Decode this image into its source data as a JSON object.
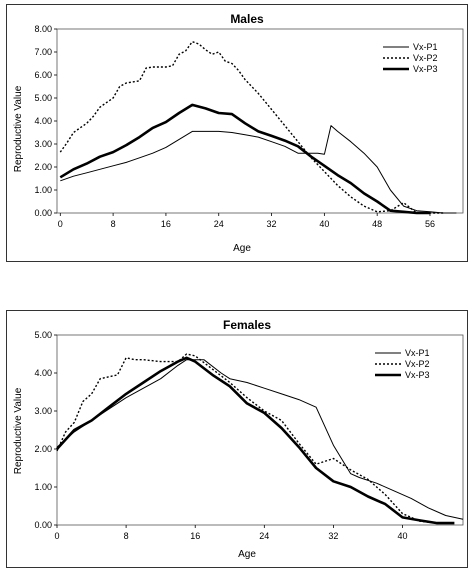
{
  "chart_data": [
    {
      "type": "line",
      "title": "Males",
      "xlabel": "Age",
      "ylabel": "Reproductive Value",
      "xlim": [
        -0.5,
        61
      ],
      "ylim": [
        0,
        8
      ],
      "xticks": [
        0,
        8,
        16,
        24,
        32,
        40,
        48,
        56
      ],
      "yticks": [
        "0.00",
        "1.00",
        "2.00",
        "3.00",
        "4.00",
        "5.00",
        "6.00",
        "7.00",
        "8.00"
      ],
      "yticks_values": [
        0,
        1,
        2,
        3,
        4,
        5,
        6,
        7,
        8
      ],
      "grid": false,
      "legend": "top-right",
      "series": [
        {
          "name": "Vx-P1",
          "style": "thin",
          "x": [
            0,
            2,
            4,
            6,
            8,
            10,
            12,
            14,
            16,
            18,
            20,
            22,
            24,
            26,
            28,
            30,
            32,
            34,
            36,
            38,
            39,
            40,
            41,
            42,
            44,
            46,
            48,
            50,
            52,
            54,
            56,
            58,
            60
          ],
          "y": [
            1.4,
            1.6,
            1.75,
            1.9,
            2.05,
            2.2,
            2.4,
            2.6,
            2.85,
            3.2,
            3.55,
            3.55,
            3.55,
            3.5,
            3.4,
            3.3,
            3.1,
            2.9,
            2.6,
            2.6,
            2.6,
            2.55,
            3.8,
            3.55,
            3.1,
            2.6,
            2.0,
            1.0,
            0.3,
            0.1,
            0.05,
            0.0,
            0.0
          ]
        },
        {
          "name": "Vx-P2",
          "style": "dotted",
          "x": [
            0,
            1,
            2,
            3,
            4,
            5,
            6,
            7,
            8,
            9,
            10,
            11,
            12,
            13,
            14,
            15,
            16,
            17,
            18,
            19,
            20,
            21,
            22,
            23,
            24,
            25,
            26,
            27,
            28,
            30,
            32,
            34,
            36,
            38,
            40,
            42,
            44,
            46,
            48,
            50,
            52,
            54,
            56,
            58
          ],
          "y": [
            2.65,
            3.05,
            3.5,
            3.7,
            3.9,
            4.2,
            4.6,
            4.8,
            5.0,
            5.5,
            5.65,
            5.7,
            5.75,
            6.3,
            6.35,
            6.35,
            6.35,
            6.4,
            6.9,
            7.05,
            7.45,
            7.35,
            7.1,
            6.9,
            7.0,
            6.6,
            6.5,
            6.2,
            5.8,
            5.2,
            4.5,
            3.8,
            3.1,
            2.4,
            1.8,
            1.2,
            0.7,
            0.3,
            0.05,
            0.1,
            0.45,
            0.0,
            0.0,
            0.0
          ]
        },
        {
          "name": "Vx-P3",
          "style": "thick",
          "x": [
            0,
            2,
            4,
            6,
            8,
            10,
            12,
            14,
            16,
            18,
            20,
            22,
            24,
            26,
            28,
            30,
            32,
            34,
            36,
            38,
            40,
            42,
            44,
            46,
            48,
            50,
            52,
            54,
            56
          ],
          "y": [
            1.55,
            1.9,
            2.15,
            2.45,
            2.65,
            2.95,
            3.3,
            3.7,
            3.95,
            4.35,
            4.7,
            4.55,
            4.35,
            4.3,
            3.9,
            3.55,
            3.35,
            3.15,
            2.9,
            2.45,
            2.05,
            1.65,
            1.3,
            0.85,
            0.5,
            0.1,
            0.05,
            0.0,
            0.0
          ]
        }
      ]
    },
    {
      "type": "line",
      "title": "Females",
      "xlabel": "Age",
      "ylabel": "Reproductive Value",
      "xlim": [
        0,
        47
      ],
      "ylim": [
        0,
        5
      ],
      "xticks": [
        0,
        8,
        16,
        24,
        32,
        40
      ],
      "yticks": [
        "0.00",
        "1.00",
        "2.00",
        "3.00",
        "4.00",
        "5.00"
      ],
      "yticks_values": [
        0,
        1,
        2,
        3,
        4,
        5
      ],
      "grid": false,
      "legend": "top-right",
      "series": [
        {
          "name": "Vx-P1",
          "style": "thin",
          "x": [
            0,
            2,
            4,
            6,
            8,
            10,
            12,
            14,
            15,
            17,
            19,
            20,
            22,
            24,
            26,
            28,
            30,
            32,
            34,
            35,
            37,
            39,
            41,
            43,
            45,
            47
          ],
          "y": [
            2.05,
            2.45,
            2.75,
            3.05,
            3.35,
            3.6,
            3.85,
            4.2,
            4.35,
            4.35,
            4.0,
            3.85,
            3.75,
            3.6,
            3.45,
            3.3,
            3.1,
            2.1,
            1.35,
            1.25,
            1.1,
            0.9,
            0.7,
            0.45,
            0.25,
            0.15
          ]
        },
        {
          "name": "Vx-P2",
          "style": "dotted",
          "x": [
            0,
            1,
            2,
            3,
            4,
            5,
            6,
            7,
            8,
            9,
            10,
            12,
            14,
            15,
            16,
            18,
            20,
            22,
            24,
            26,
            28,
            30,
            32,
            34,
            36,
            38,
            40,
            42,
            44,
            46
          ],
          "y": [
            1.95,
            2.45,
            2.7,
            3.25,
            3.45,
            3.85,
            3.9,
            3.95,
            4.4,
            4.35,
            4.35,
            4.3,
            4.3,
            4.5,
            4.45,
            4.1,
            3.75,
            3.35,
            3.0,
            2.75,
            2.15,
            1.6,
            1.75,
            1.45,
            1.2,
            0.8,
            0.3,
            0.1,
            0.05,
            0.05
          ]
        },
        {
          "name": "Vx-P3",
          "style": "thick",
          "x": [
            0,
            2,
            4,
            6,
            8,
            10,
            12,
            14,
            15,
            16,
            18,
            20,
            22,
            24,
            26,
            28,
            30,
            32,
            34,
            36,
            38,
            40,
            42,
            44,
            46
          ],
          "y": [
            2.0,
            2.5,
            2.75,
            3.1,
            3.45,
            3.75,
            4.05,
            4.3,
            4.4,
            4.3,
            3.95,
            3.65,
            3.2,
            2.95,
            2.55,
            2.05,
            1.5,
            1.15,
            1.0,
            0.75,
            0.55,
            0.2,
            0.12,
            0.05,
            0.05
          ]
        }
      ]
    }
  ]
}
